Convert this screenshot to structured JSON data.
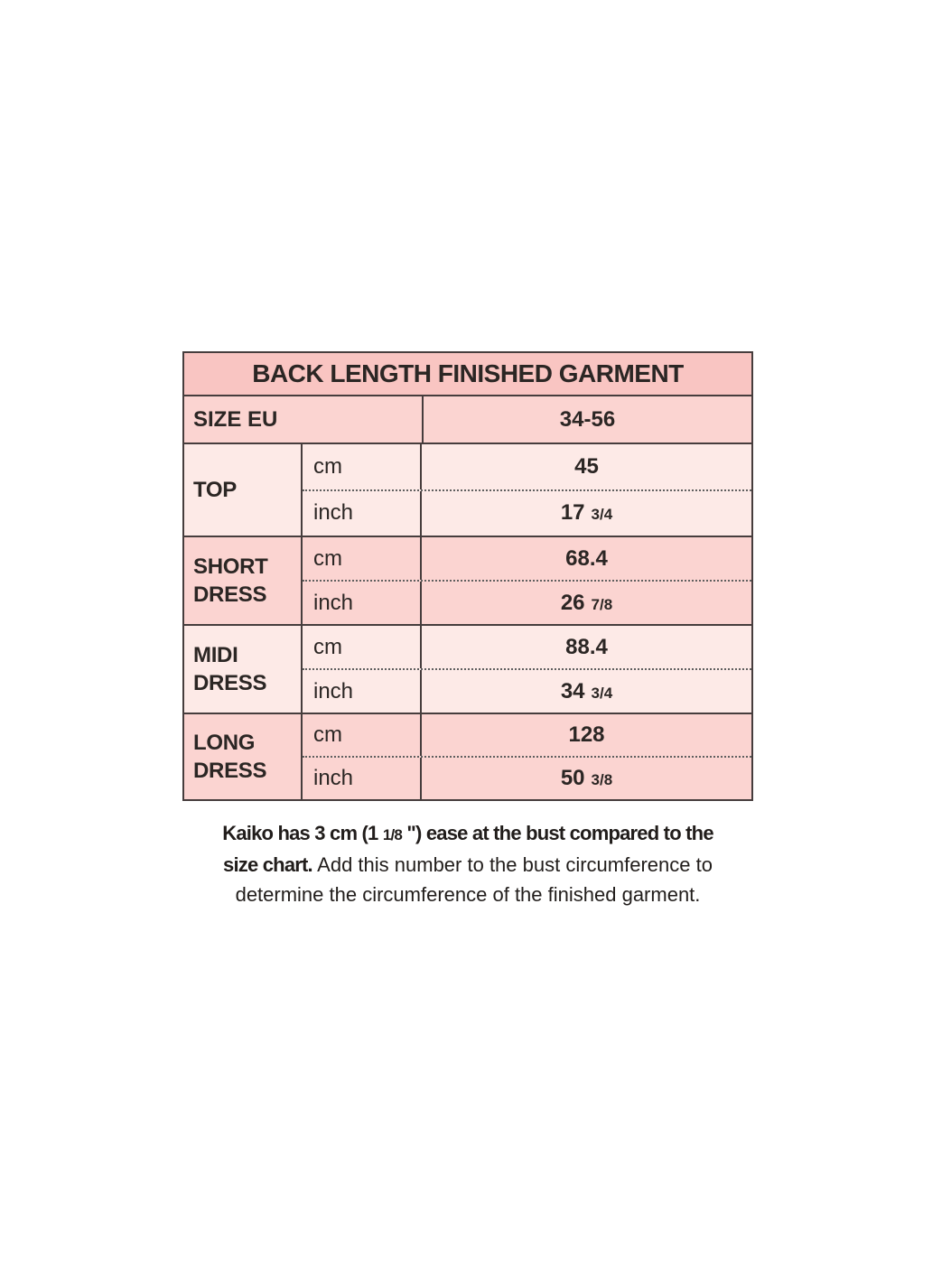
{
  "colors": {
    "header_bg": "#f9c5c2",
    "row_medium_bg": "#fbd4d1",
    "row_light_bg": "#fdeae7",
    "border": "#463d3d",
    "dotted_divider": "#5f5f5f",
    "text": "#2b2624"
  },
  "table": {
    "title": "BACK LENGTH FINISHED GARMENT",
    "size_row": {
      "label": "SIZE EU",
      "value": "34-56"
    },
    "sections": [
      {
        "label": "TOP",
        "rows": [
          {
            "unit": "cm",
            "value": "45"
          },
          {
            "unit": "inch",
            "value": "17 3/4"
          }
        ]
      },
      {
        "label": "SHORT DRESS",
        "rows": [
          {
            "unit": "cm",
            "value": "68.4"
          },
          {
            "unit": "inch",
            "value": "26 7/8"
          }
        ]
      },
      {
        "label": "MIDI DRESS",
        "rows": [
          {
            "unit": "cm",
            "value": "88.4"
          },
          {
            "unit": "inch",
            "value": "34 3/4"
          }
        ]
      },
      {
        "label": "LONG DRESS",
        "rows": [
          {
            "unit": "cm",
            "value": "128"
          },
          {
            "unit": "inch",
            "value": "50 3/8"
          }
        ]
      }
    ]
  },
  "note": {
    "lines": [
      {
        "segments": [
          {
            "text": "Kaiko has 3 cm (1 ",
            "bold": true,
            "small": false
          },
          {
            "text": "1/8",
            "bold": true,
            "small": true
          },
          {
            "text": " \") ease at the bust compared to the",
            "bold": true,
            "small": false
          }
        ]
      },
      {
        "segments": [
          {
            "text": "size chart. ",
            "bold": true,
            "small": false
          },
          {
            "text": "Add this number to the bust circumference to",
            "bold": false,
            "small": false
          }
        ]
      },
      {
        "segments": [
          {
            "text": "determine the circumference of the finished garment.",
            "bold": false,
            "small": false
          }
        ]
      }
    ]
  }
}
